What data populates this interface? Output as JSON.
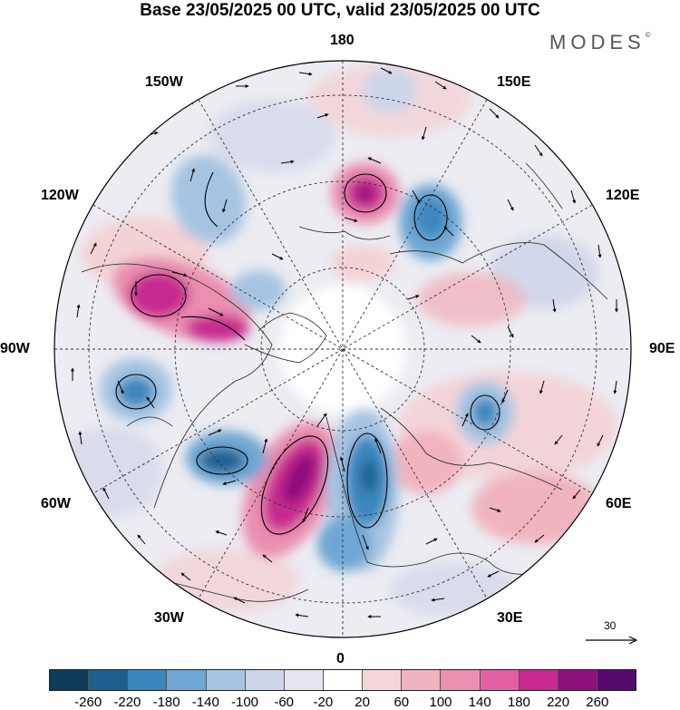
{
  "title": "Base 23/05/2025 00 UTC, valid 23/05/2025 00 UTC",
  "brand": {
    "name": "MODES",
    "mark": "©"
  },
  "map": {
    "projection": "north-polar-stereographic",
    "longitude_labels": {
      "top": "180",
      "bottom": "0",
      "left": "90W",
      "right": "90E",
      "upper_left_outer": "150W",
      "upper_left_inner": "120W",
      "upper_right_outer": "150E",
      "upper_right_inner": "120E",
      "lower_left_inner": "60W",
      "lower_left_outer": "30W",
      "lower_right_inner": "60E",
      "lower_right_outer": "30E"
    },
    "reference_vector": {
      "label": "30"
    }
  },
  "colorbar": {
    "colors": [
      "#0e3b5a",
      "#1d5f8e",
      "#3a87be",
      "#6ea7d3",
      "#a5c4e2",
      "#cdd5ea",
      "#e7e4f1",
      "#ffffff",
      "#f6d6d6",
      "#f0b4be",
      "#ea8fb0",
      "#e25fa4",
      "#c7298f",
      "#8f0f7b",
      "#560a6d"
    ],
    "ticks": [
      "-260",
      "-220",
      "-180",
      "-140",
      "-100",
      "-60",
      "-20",
      "20",
      "60",
      "100",
      "140",
      "180",
      "220",
      "260"
    ]
  }
}
